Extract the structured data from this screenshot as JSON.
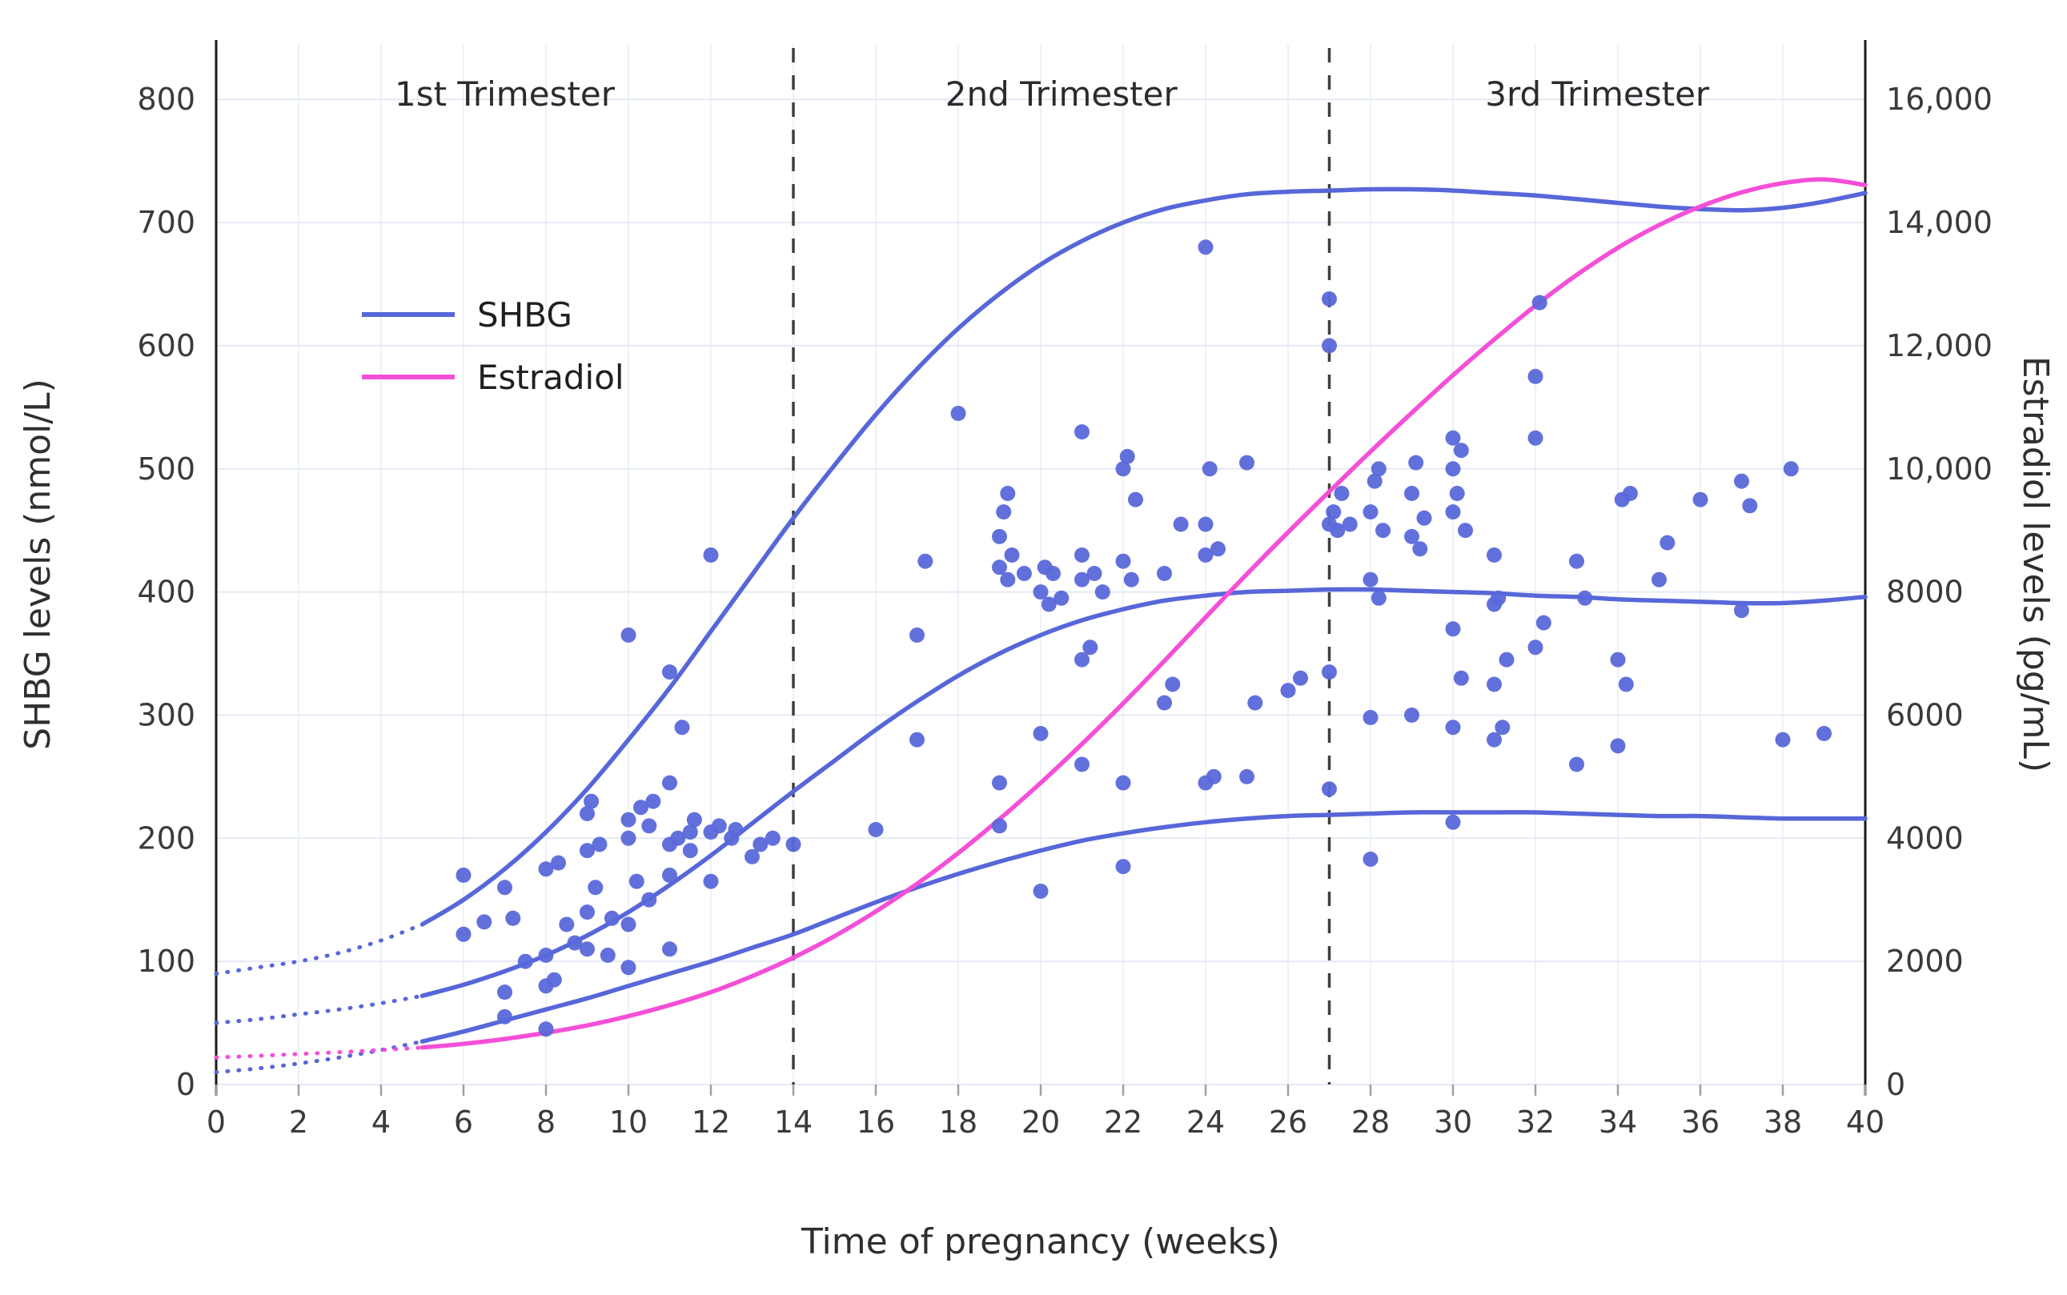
{
  "chart_data": {
    "type": "line",
    "title": "",
    "xlabel": "Time of pregnancy (weeks)",
    "ylabel_left": "SHBG levels (nmol/L)",
    "ylabel_right": "Estradiol levels (pg/mL)",
    "x_range": [
      0,
      40
    ],
    "y_range_left": [
      0,
      845
    ],
    "y_range_right": [
      0,
      16900
    ],
    "grid": true,
    "solid_start_week": 5,
    "x_ticks": [
      0,
      2,
      4,
      6,
      8,
      10,
      12,
      14,
      16,
      18,
      20,
      22,
      24,
      26,
      28,
      30,
      32,
      34,
      36,
      38,
      40
    ],
    "y_ticks_left": {
      "values": [
        0,
        100,
        200,
        300,
        400,
        500,
        600,
        700,
        800
      ],
      "labels": [
        "0",
        "100",
        "200",
        "300",
        "400",
        "500",
        "600",
        "700",
        "800"
      ]
    },
    "y_ticks_right": {
      "values": [
        0,
        2000,
        4000,
        6000,
        8000,
        10000,
        12000,
        14000,
        16000
      ],
      "labels": [
        "0",
        "2000",
        "4000",
        "6000",
        "8000",
        "10,000",
        "12,000",
        "14,000",
        "16,000"
      ]
    },
    "trimesters": {
      "labels": [
        "1st Trimester",
        "2nd Trimester",
        "3rd Trimester"
      ],
      "boundaries": [
        14,
        27
      ]
    },
    "legend": [
      {
        "label": "SHBG",
        "color": "#5767d9"
      },
      {
        "label": "Estradiol",
        "color": "#f44fd7"
      }
    ],
    "colors": {
      "curve_blue": "#5767d9",
      "curve_pink": "#f44fd7",
      "dots": "#5a68da",
      "grid_h": "#e4eaf4",
      "grid_v": "#eef1f8",
      "axis_line": "#1a1a1a",
      "dashed_line": "#3f3f3f",
      "tick": "#9aa0ab"
    },
    "series": [
      {
        "name": "shbg-upper",
        "axis": "left",
        "color": "#5767d9",
        "x": [
          0,
          1,
          2,
          3,
          4,
          5,
          6,
          7,
          8,
          9,
          10,
          11,
          12,
          13,
          14,
          15,
          16,
          17,
          18,
          19,
          20,
          21,
          22,
          23,
          24,
          25,
          26,
          27,
          28,
          29,
          30,
          31,
          32,
          33,
          34,
          35,
          36,
          37,
          38,
          39,
          40
        ],
        "y": [
          90,
          95,
          100,
          107,
          117,
          130,
          150,
          175,
          205,
          240,
          280,
          322,
          368,
          414,
          460,
          503,
          544,
          581,
          614,
          642,
          666,
          685,
          700,
          711,
          718,
          723,
          725,
          726,
          727,
          727,
          726,
          724,
          722,
          719,
          716,
          713,
          711,
          710,
          712,
          717,
          724
        ]
      },
      {
        "name": "shbg-median",
        "axis": "left",
        "color": "#5767d9",
        "x": [
          0,
          1,
          2,
          3,
          4,
          5,
          6,
          7,
          8,
          9,
          10,
          11,
          12,
          13,
          14,
          15,
          16,
          17,
          18,
          19,
          20,
          21,
          22,
          23,
          24,
          25,
          26,
          27,
          28,
          29,
          30,
          31,
          32,
          33,
          34,
          35,
          36,
          37,
          38,
          39,
          40
        ],
        "y": [
          50,
          53,
          57,
          61,
          66,
          72,
          81,
          92,
          105,
          121,
          140,
          162,
          186,
          212,
          238,
          263,
          288,
          311,
          332,
          350,
          365,
          377,
          386,
          393,
          397,
          400,
          401,
          402,
          402,
          401,
          400,
          399,
          397,
          396,
          394,
          393,
          392,
          391,
          391,
          393,
          396
        ]
      },
      {
        "name": "shbg-lower",
        "axis": "left",
        "color": "#5767d9",
        "x": [
          0,
          1,
          2,
          3,
          4,
          5,
          6,
          7,
          8,
          9,
          10,
          11,
          12,
          13,
          14,
          15,
          16,
          17,
          18,
          19,
          20,
          21,
          22,
          23,
          24,
          25,
          26,
          27,
          28,
          29,
          30,
          31,
          32,
          33,
          34,
          35,
          36,
          37,
          38,
          39,
          40
        ],
        "y": [
          10,
          13,
          17,
          22,
          28,
          35,
          43,
          52,
          61,
          70,
          80,
          90,
          100,
          111,
          122,
          135,
          148,
          160,
          171,
          181,
          190,
          198,
          204,
          209,
          213,
          216,
          218,
          219,
          220,
          221,
          221,
          221,
          221,
          220,
          219,
          218,
          218,
          217,
          216,
          216,
          216
        ]
      },
      {
        "name": "estradiol",
        "axis": "right",
        "color": "#f44fd7",
        "x": [
          0,
          1,
          2,
          3,
          4,
          5,
          6,
          7,
          8,
          9,
          10,
          11,
          12,
          13,
          14,
          15,
          16,
          17,
          18,
          19,
          20,
          21,
          22,
          23,
          24,
          25,
          26,
          27,
          28,
          29,
          30,
          31,
          32,
          33,
          34,
          35,
          36,
          37,
          38,
          39,
          40
        ],
        "y": [
          440,
          465,
          495,
          525,
          560,
          600,
          660,
          740,
          840,
          960,
          1110,
          1290,
          1500,
          1760,
          2060,
          2410,
          2810,
          3260,
          3760,
          4310,
          4900,
          5530,
          6190,
          6880,
          7590,
          8290,
          8970,
          9630,
          10280,
          10910,
          11520,
          12100,
          12650,
          13150,
          13590,
          13960,
          14260,
          14490,
          14640,
          14700,
          14610
        ]
      }
    ],
    "scatter": {
      "name": "shbg-observations",
      "color": "#5a68da",
      "points": [
        [
          6,
          122
        ],
        [
          6,
          170
        ],
        [
          6.5,
          132
        ],
        [
          7,
          55
        ],
        [
          7,
          75
        ],
        [
          7.2,
          135
        ],
        [
          7,
          160
        ],
        [
          7.5,
          100
        ],
        [
          8,
          45
        ],
        [
          8,
          80
        ],
        [
          8.2,
          85
        ],
        [
          8,
          105
        ],
        [
          8,
          175
        ],
        [
          8.3,
          180
        ],
        [
          8.5,
          130
        ],
        [
          8.7,
          115
        ],
        [
          9,
          110
        ],
        [
          9,
          140
        ],
        [
          9.2,
          160
        ],
        [
          9,
          190
        ],
        [
          9.3,
          195
        ],
        [
          9,
          220
        ],
        [
          9.1,
          230
        ],
        [
          9.5,
          105
        ],
        [
          9.6,
          135
        ],
        [
          10,
          95
        ],
        [
          10,
          130
        ],
        [
          10.2,
          165
        ],
        [
          10,
          200
        ],
        [
          10,
          215
        ],
        [
          10.3,
          225
        ],
        [
          10,
          365
        ],
        [
          10.5,
          150
        ],
        [
          10.5,
          210
        ],
        [
          10.6,
          230
        ],
        [
          11,
          110
        ],
        [
          11,
          170
        ],
        [
          11,
          195
        ],
        [
          11.2,
          200
        ],
        [
          11,
          245
        ],
        [
          11.3,
          290
        ],
        [
          11,
          335
        ],
        [
          11.5,
          190
        ],
        [
          11.5,
          205
        ],
        [
          11.6,
          215
        ],
        [
          12,
          165
        ],
        [
          12,
          205
        ],
        [
          12.2,
          210
        ],
        [
          12,
          430
        ],
        [
          12.5,
          200
        ],
        [
          12.6,
          207
        ],
        [
          13,
          185
        ],
        [
          13.2,
          195
        ],
        [
          13.5,
          200
        ],
        [
          14,
          195
        ],
        [
          16,
          207
        ],
        [
          17,
          280
        ],
        [
          17,
          365
        ],
        [
          17.2,
          425
        ],
        [
          18,
          545
        ],
        [
          19,
          210
        ],
        [
          19,
          245
        ],
        [
          19.2,
          410
        ],
        [
          19,
          420
        ],
        [
          19.3,
          430
        ],
        [
          19,
          445
        ],
        [
          19.1,
          465
        ],
        [
          19.2,
          480
        ],
        [
          19.6,
          415
        ],
        [
          20,
          157
        ],
        [
          20,
          285
        ],
        [
          20.2,
          390
        ],
        [
          20,
          400
        ],
        [
          20.3,
          415
        ],
        [
          20.1,
          420
        ],
        [
          20.5,
          395
        ],
        [
          21,
          260
        ],
        [
          21,
          345
        ],
        [
          21.2,
          355
        ],
        [
          21,
          410
        ],
        [
          21.3,
          415
        ],
        [
          21,
          430
        ],
        [
          21,
          530
        ],
        [
          21.5,
          400
        ],
        [
          22,
          177
        ],
        [
          22,
          245
        ],
        [
          22.2,
          410
        ],
        [
          22,
          425
        ],
        [
          22.3,
          475
        ],
        [
          22,
          500
        ],
        [
          22.1,
          510
        ],
        [
          23,
          310
        ],
        [
          23.2,
          325
        ],
        [
          23,
          415
        ],
        [
          23.4,
          455
        ],
        [
          24,
          245
        ],
        [
          24.2,
          250
        ],
        [
          24,
          430
        ],
        [
          24.3,
          435
        ],
        [
          24,
          455
        ],
        [
          24.1,
          500
        ],
        [
          24,
          680
        ],
        [
          25,
          250
        ],
        [
          25.2,
          310
        ],
        [
          25,
          505
        ],
        [
          26,
          320
        ],
        [
          26.3,
          330
        ],
        [
          27,
          240
        ],
        [
          27,
          335
        ],
        [
          27.2,
          450
        ],
        [
          27,
          455
        ],
        [
          27.1,
          465
        ],
        [
          27.3,
          480
        ],
        [
          27,
          600
        ],
        [
          27,
          638
        ],
        [
          27.5,
          455
        ],
        [
          28,
          183
        ],
        [
          28,
          298
        ],
        [
          28.2,
          395
        ],
        [
          28,
          410
        ],
        [
          28.3,
          450
        ],
        [
          28,
          465
        ],
        [
          28.1,
          490
        ],
        [
          28.2,
          500
        ],
        [
          29,
          300
        ],
        [
          29.2,
          435
        ],
        [
          29,
          445
        ],
        [
          29.3,
          460
        ],
        [
          29,
          480
        ],
        [
          29.1,
          505
        ],
        [
          30,
          213
        ],
        [
          30,
          290
        ],
        [
          30.2,
          330
        ],
        [
          30,
          370
        ],
        [
          30.3,
          450
        ],
        [
          30,
          465
        ],
        [
          30.1,
          480
        ],
        [
          30,
          500
        ],
        [
          30.2,
          515
        ],
        [
          30,
          525
        ],
        [
          31,
          280
        ],
        [
          31.2,
          290
        ],
        [
          31,
          325
        ],
        [
          31.3,
          345
        ],
        [
          31,
          390
        ],
        [
          31.1,
          395
        ],
        [
          31,
          430
        ],
        [
          32,
          355
        ],
        [
          32.2,
          375
        ],
        [
          32,
          525
        ],
        [
          32,
          575
        ],
        [
          32.1,
          635
        ],
        [
          33,
          260
        ],
        [
          33.2,
          395
        ],
        [
          33,
          425
        ],
        [
          34,
          275
        ],
        [
          34.2,
          325
        ],
        [
          34,
          345
        ],
        [
          34.1,
          475
        ],
        [
          34.3,
          480
        ],
        [
          35,
          410
        ],
        [
          35.2,
          440
        ],
        [
          36,
          475
        ],
        [
          37,
          385
        ],
        [
          37.2,
          470
        ],
        [
          37,
          490
        ],
        [
          38,
          280
        ],
        [
          38.2,
          500
        ],
        [
          39,
          285
        ]
      ]
    }
  }
}
